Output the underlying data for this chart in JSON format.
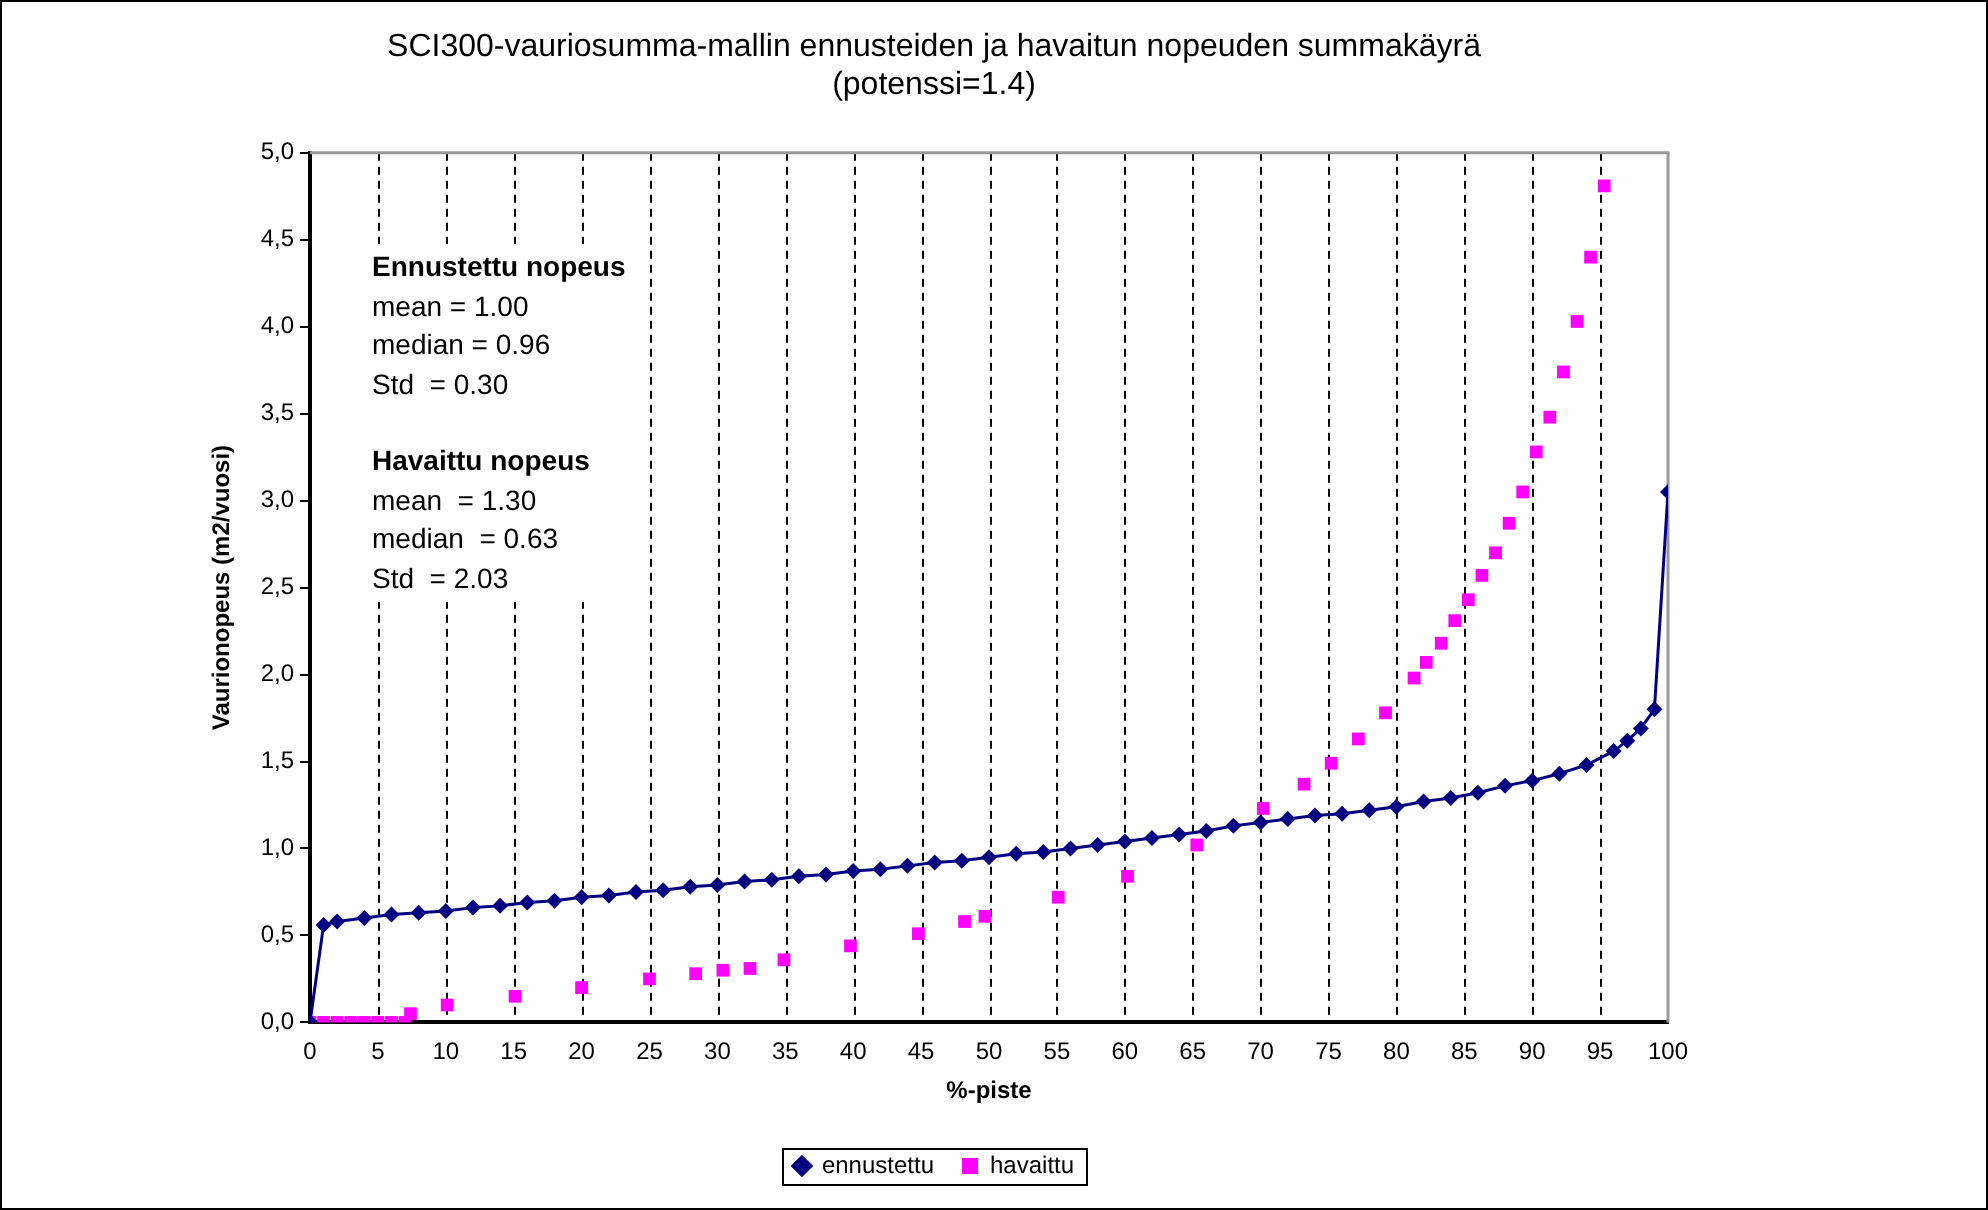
{
  "chart_data": {
    "type": "line",
    "title": "SCI300-vauriosumma-mallin ennusteiden ja havaitun nopeuden summakäyrä\n(potenssi=1.4)",
    "xlabel": "%-piste",
    "ylabel": "Vaurionopeus (m2/vuosi)",
    "annotations": [
      "Ennustettu nopeus",
      "mean = 1.00",
      "median = 0.96",
      "Std  = 0.30",
      "Havaittu nopeus",
      "mean  = 1.30",
      "median  = 0.63",
      "Std  = 2.03"
    ],
    "xlim": [
      0,
      100
    ],
    "xticks": [
      0,
      5,
      10,
      15,
      20,
      25,
      30,
      35,
      40,
      45,
      50,
      55,
      60,
      65,
      70,
      75,
      80,
      85,
      90,
      95,
      100
    ],
    "ylim": [
      0,
      5
    ],
    "yticks": [
      {
        "value": 0,
        "label": "0,0"
      },
      {
        "value": 0.5,
        "label": "0,5"
      },
      {
        "value": 1,
        "label": "1,0"
      },
      {
        "value": 1.5,
        "label": "1,5"
      },
      {
        "value": 2,
        "label": "2,0"
      },
      {
        "value": 2.5,
        "label": "2,5"
      },
      {
        "value": 3,
        "label": "3,0"
      },
      {
        "value": 3.5,
        "label": "3,5"
      },
      {
        "value": 4,
        "label": "4,0"
      },
      {
        "value": 4.5,
        "label": "4,5"
      },
      {
        "value": 5,
        "label": "5,0"
      }
    ],
    "grid": "x",
    "legend": "bottom",
    "series": [
      {
        "name": "ennustettu",
        "marker": "diamond",
        "color": "#000080",
        "x": [
          0,
          1,
          2,
          4,
          6,
          8,
          10,
          12,
          14,
          16,
          18,
          20,
          22,
          24,
          26,
          28,
          30,
          32,
          34,
          36,
          38,
          40,
          42,
          44,
          46,
          48,
          50,
          52,
          54,
          56,
          58,
          60,
          62,
          64,
          66,
          68,
          70,
          72,
          74,
          76,
          78,
          80,
          82,
          84,
          86,
          88,
          90,
          92,
          94,
          96,
          97,
          98,
          99,
          100
        ],
        "values": [
          0,
          0.56,
          0.58,
          0.6,
          0.62,
          0.63,
          0.64,
          0.66,
          0.67,
          0.69,
          0.7,
          0.72,
          0.73,
          0.75,
          0.76,
          0.78,
          0.79,
          0.81,
          0.82,
          0.84,
          0.85,
          0.87,
          0.88,
          0.9,
          0.92,
          0.93,
          0.95,
          0.97,
          0.98,
          1.0,
          1.02,
          1.04,
          1.06,
          1.08,
          1.1,
          1.13,
          1.15,
          1.17,
          1.19,
          1.2,
          1.22,
          1.24,
          1.27,
          1.29,
          1.32,
          1.36,
          1.39,
          1.43,
          1.48,
          1.56,
          1.62,
          1.69,
          1.8,
          3.05
        ]
      },
      {
        "name": "havaittu",
        "type": "scatter",
        "marker": "square",
        "color": "#ff00ff",
        "x": [
          0,
          1,
          2,
          3,
          4,
          5,
          6,
          7,
          7.4,
          10.1,
          15.1,
          20,
          25,
          28.4,
          30.4,
          32.4,
          34.9,
          39.8,
          44.8,
          48.2,
          49.7,
          55.1,
          60.2,
          65.3,
          70.2,
          73.2,
          75.2,
          77.2,
          79.2,
          81.3,
          82.2,
          83.3,
          84.3,
          85.3,
          86.3,
          87.3,
          88.3,
          89.3,
          90.3,
          91.3,
          92.3,
          93.3,
          94.3,
          95.3
        ],
        "values": [
          0,
          0,
          0,
          0,
          0,
          0,
          0,
          0,
          0.05,
          0.1,
          0.15,
          0.2,
          0.25,
          0.28,
          0.3,
          0.31,
          0.36,
          0.44,
          0.51,
          0.58,
          0.61,
          0.72,
          0.84,
          1.02,
          1.23,
          1.37,
          1.49,
          1.63,
          1.78,
          1.98,
          2.07,
          2.18,
          2.31,
          2.43,
          2.57,
          2.7,
          2.87,
          3.05,
          3.28,
          3.48,
          3.74,
          4.03,
          4.4,
          4.81
        ]
      }
    ]
  }
}
